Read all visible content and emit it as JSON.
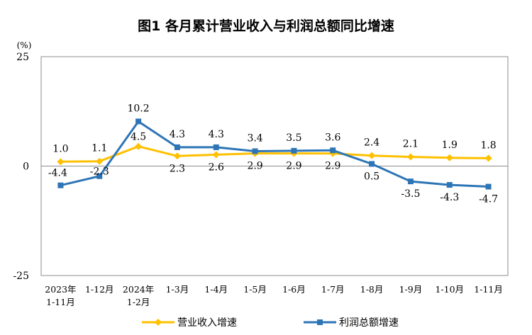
{
  "chart_data": {
    "type": "line",
    "title": "图1  各月累计营业收入与利润总额同比增速",
    "ylabel": "(%)",
    "ylim": [
      -25,
      25
    ],
    "yticks": [
      "25",
      "0",
      "-25"
    ],
    "grid": false,
    "legend_position": "bottom",
    "categories": [
      [
        "2023年",
        "1-11月"
      ],
      [
        "1-12月"
      ],
      [
        "2024年",
        "1-2月"
      ],
      [
        "1-3月"
      ],
      [
        "1-4月"
      ],
      [
        "1-5月"
      ],
      [
        "1-6月"
      ],
      [
        "1-7月"
      ],
      [
        "1-8月"
      ],
      [
        "1-9月"
      ],
      [
        "1-10月"
      ],
      [
        "1-11月"
      ]
    ],
    "series": [
      {
        "name": "营业收入增速",
        "color": "#FFC000",
        "marker": "diamond",
        "values": [
          1.0,
          1.1,
          4.5,
          2.3,
          2.6,
          2.9,
          2.9,
          2.9,
          2.4,
          2.1,
          1.9,
          1.8
        ],
        "labels": [
          "1.0",
          "1.1",
          "4.5",
          "2.3",
          "2.6",
          "2.9",
          "2.9",
          "2.9",
          "2.4",
          "2.1",
          "1.9",
          "1.8"
        ]
      },
      {
        "name": "利润总额增速",
        "color": "#2E75B6",
        "marker": "square",
        "values": [
          -4.4,
          -2.3,
          10.2,
          4.3,
          4.3,
          3.4,
          3.5,
          3.6,
          0.5,
          -3.5,
          -4.3,
          -4.7
        ],
        "labels": [
          "-4.4",
          "-2.3",
          "10.2",
          "4.3",
          "4.3",
          "3.4",
          "3.5",
          "3.6",
          "0.5",
          "-3.5",
          "-4.3",
          "-4.7"
        ]
      }
    ]
  }
}
